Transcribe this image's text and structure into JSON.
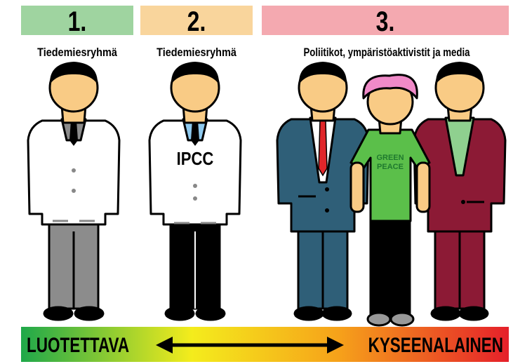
{
  "groups": [
    {
      "number": "1.",
      "label": "Tiedemiesryhmä"
    },
    {
      "number": "2.",
      "label": "Tiedemiesryhmä",
      "coat_text": "IPCC"
    },
    {
      "number": "3.",
      "label": "Poliitikot, ympäristöaktivistit ja media",
      "shirt_text": [
        "GREEN",
        "PEACE"
      ]
    }
  ],
  "scale": {
    "left": "LUOTETTAVA",
    "right": "KYSEENALAINEN"
  }
}
